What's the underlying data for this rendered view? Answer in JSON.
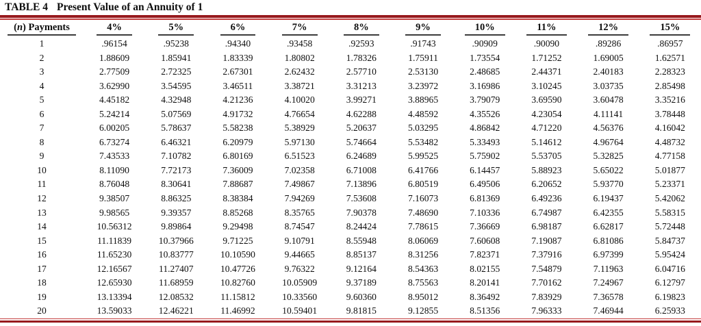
{
  "colors": {
    "rule_dark": "#97191d",
    "rule_light": "#c13a3a",
    "underline": "#3b3b3b"
  },
  "table": {
    "title_label": "TABLE 4",
    "title": "Present Value of an Annuity of 1",
    "row_header": {
      "prefix": "(",
      "italic": "n",
      "suffix": ") Payments"
    },
    "columns": [
      "4%",
      "5%",
      "6%",
      "7%",
      "8%",
      "9%",
      "10%",
      "11%",
      "12%",
      "15%"
    ],
    "rows": [
      {
        "n": "1",
        "values": [
          ".96154",
          ".95238",
          ".94340",
          ".93458",
          ".92593",
          ".91743",
          ".90909",
          ".90090",
          ".89286",
          ".86957"
        ]
      },
      {
        "n": "2",
        "values": [
          "1.88609",
          "1.85941",
          "1.83339",
          "1.80802",
          "1.78326",
          "1.75911",
          "1.73554",
          "1.71252",
          "1.69005",
          "1.62571"
        ]
      },
      {
        "n": "3",
        "values": [
          "2.77509",
          "2.72325",
          "2.67301",
          "2.62432",
          "2.57710",
          "2.53130",
          "2.48685",
          "2.44371",
          "2.40183",
          "2.28323"
        ]
      },
      {
        "n": "4",
        "values": [
          "3.62990",
          "3.54595",
          "3.46511",
          "3.38721",
          "3.31213",
          "3.23972",
          "3.16986",
          "3.10245",
          "3.03735",
          "2.85498"
        ]
      },
      {
        "n": "5",
        "values": [
          "4.45182",
          "4.32948",
          "4.21236",
          "4.10020",
          "3.99271",
          "3.88965",
          "3.79079",
          "3.69590",
          "3.60478",
          "3.35216"
        ]
      },
      {
        "n": "6",
        "values": [
          "5.24214",
          "5.07569",
          "4.91732",
          "4.76654",
          "4.62288",
          "4.48592",
          "4.35526",
          "4.23054",
          "4.11141",
          "3.78448"
        ]
      },
      {
        "n": "7",
        "values": [
          "6.00205",
          "5.78637",
          "5.58238",
          "5.38929",
          "5.20637",
          "5.03295",
          "4.86842",
          "4.71220",
          "4.56376",
          "4.16042"
        ]
      },
      {
        "n": "8",
        "values": [
          "6.73274",
          "6.46321",
          "6.20979",
          "5.97130",
          "5.74664",
          "5.53482",
          "5.33493",
          "5.14612",
          "4.96764",
          "4.48732"
        ]
      },
      {
        "n": "9",
        "values": [
          "7.43533",
          "7.10782",
          "6.80169",
          "6.51523",
          "6.24689",
          "5.99525",
          "5.75902",
          "5.53705",
          "5.32825",
          "4.77158"
        ]
      },
      {
        "n": "10",
        "values": [
          "8.11090",
          "7.72173",
          "7.36009",
          "7.02358",
          "6.71008",
          "6.41766",
          "6.14457",
          "5.88923",
          "5.65022",
          "5.01877"
        ]
      },
      {
        "n": "11",
        "values": [
          "8.76048",
          "8.30641",
          "7.88687",
          "7.49867",
          "7.13896",
          "6.80519",
          "6.49506",
          "6.20652",
          "5.93770",
          "5.23371"
        ]
      },
      {
        "n": "12",
        "values": [
          "9.38507",
          "8.86325",
          "8.38384",
          "7.94269",
          "7.53608",
          "7.16073",
          "6.81369",
          "6.49236",
          "6.19437",
          "5.42062"
        ]
      },
      {
        "n": "13",
        "values": [
          "9.98565",
          "9.39357",
          "8.85268",
          "8.35765",
          "7.90378",
          "7.48690",
          "7.10336",
          "6.74987",
          "6.42355",
          "5.58315"
        ]
      },
      {
        "n": "14",
        "values": [
          "10.56312",
          "9.89864",
          "9.29498",
          "8.74547",
          "8.24424",
          "7.78615",
          "7.36669",
          "6.98187",
          "6.62817",
          "5.72448"
        ]
      },
      {
        "n": "15",
        "values": [
          "11.11839",
          "10.37966",
          "9.71225",
          "9.10791",
          "8.55948",
          "8.06069",
          "7.60608",
          "7.19087",
          "6.81086",
          "5.84737"
        ]
      },
      {
        "n": "16",
        "values": [
          "11.65230",
          "10.83777",
          "10.10590",
          "9.44665",
          "8.85137",
          "8.31256",
          "7.82371",
          "7.37916",
          "6.97399",
          "5.95424"
        ]
      },
      {
        "n": "17",
        "values": [
          "12.16567",
          "11.27407",
          "10.47726",
          "9.76322",
          "9.12164",
          "8.54363",
          "8.02155",
          "7.54879",
          "7.11963",
          "6.04716"
        ]
      },
      {
        "n": "18",
        "values": [
          "12.65930",
          "11.68959",
          "10.82760",
          "10.05909",
          "9.37189",
          "8.75563",
          "8.20141",
          "7.70162",
          "7.24967",
          "6.12797"
        ]
      },
      {
        "n": "19",
        "values": [
          "13.13394",
          "12.08532",
          "11.15812",
          "10.33560",
          "9.60360",
          "8.95012",
          "8.36492",
          "7.83929",
          "7.36578",
          "6.19823"
        ]
      },
      {
        "n": "20",
        "values": [
          "13.59033",
          "12.46221",
          "11.46992",
          "10.59401",
          "9.81815",
          "9.12855",
          "8.51356",
          "7.96333",
          "7.46944",
          "6.25933"
        ]
      }
    ]
  }
}
